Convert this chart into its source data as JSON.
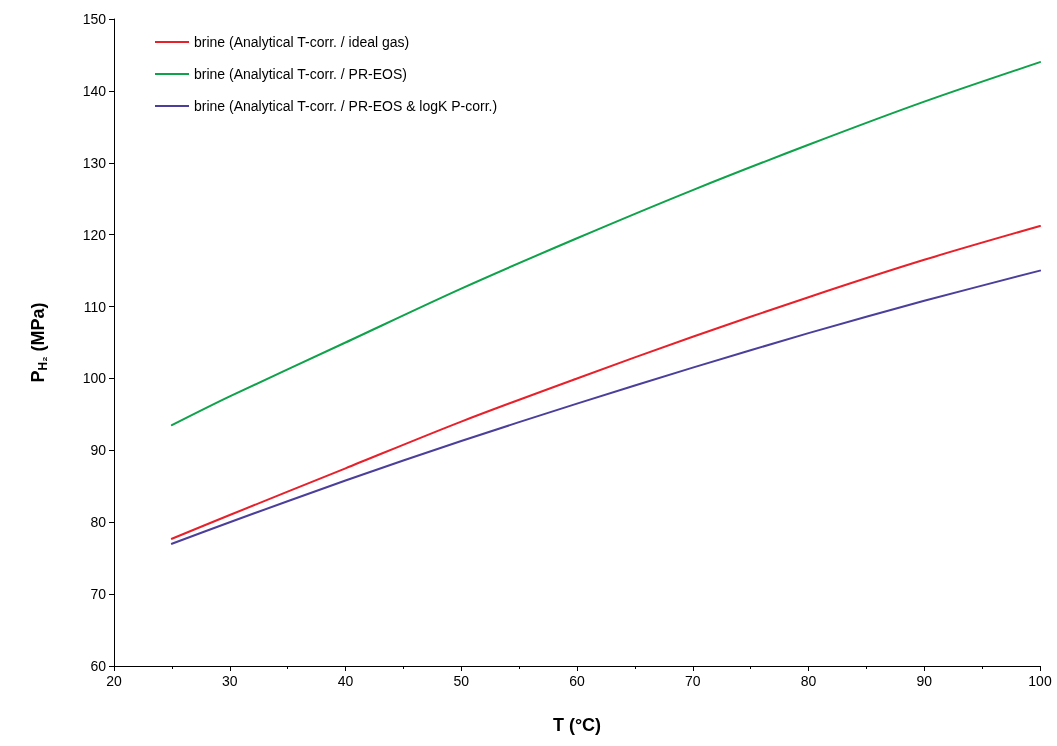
{
  "chart_data": {
    "type": "line",
    "xlabel": "T (°C)",
    "ylabel": "P$_{H₂}$ (MPa)",
    "x": [
      25,
      30,
      40,
      50,
      60,
      70,
      80,
      90,
      100
    ],
    "series": [
      {
        "name": "brine (Analytical T-corr. / ideal gas)",
        "color": "#e8202a",
        "values": [
          77.7,
          81.0,
          87.5,
          94.0,
          100.0,
          105.8,
          111.3,
          116.5,
          121.2
        ]
      },
      {
        "name": "brine (Analytical T-corr. / PR-EOS)",
        "color": "#0ea24a",
        "values": [
          93.5,
          97.5,
          105.0,
          112.5,
          119.5,
          126.2,
          132.5,
          138.5,
          144.0
        ]
      },
      {
        "name": "brine (Analytical T-corr. / PR-EOS & logK P-corr.)",
        "color": "#4b3f9c",
        "values": [
          77.0,
          80.0,
          85.8,
          91.3,
          96.5,
          101.5,
          106.3,
          110.8,
          115.0
        ]
      }
    ],
    "xlim": [
      20,
      100
    ],
    "xticks": [
      20,
      30,
      40,
      50,
      60,
      70,
      80,
      90,
      100
    ],
    "ylim": [
      60,
      150
    ],
    "yticks": [
      60,
      70,
      80,
      90,
      100,
      110,
      120,
      130,
      140,
      150
    ],
    "grid": false,
    "legend": "top left",
    "marker": "none",
    "line_style": "solid"
  }
}
